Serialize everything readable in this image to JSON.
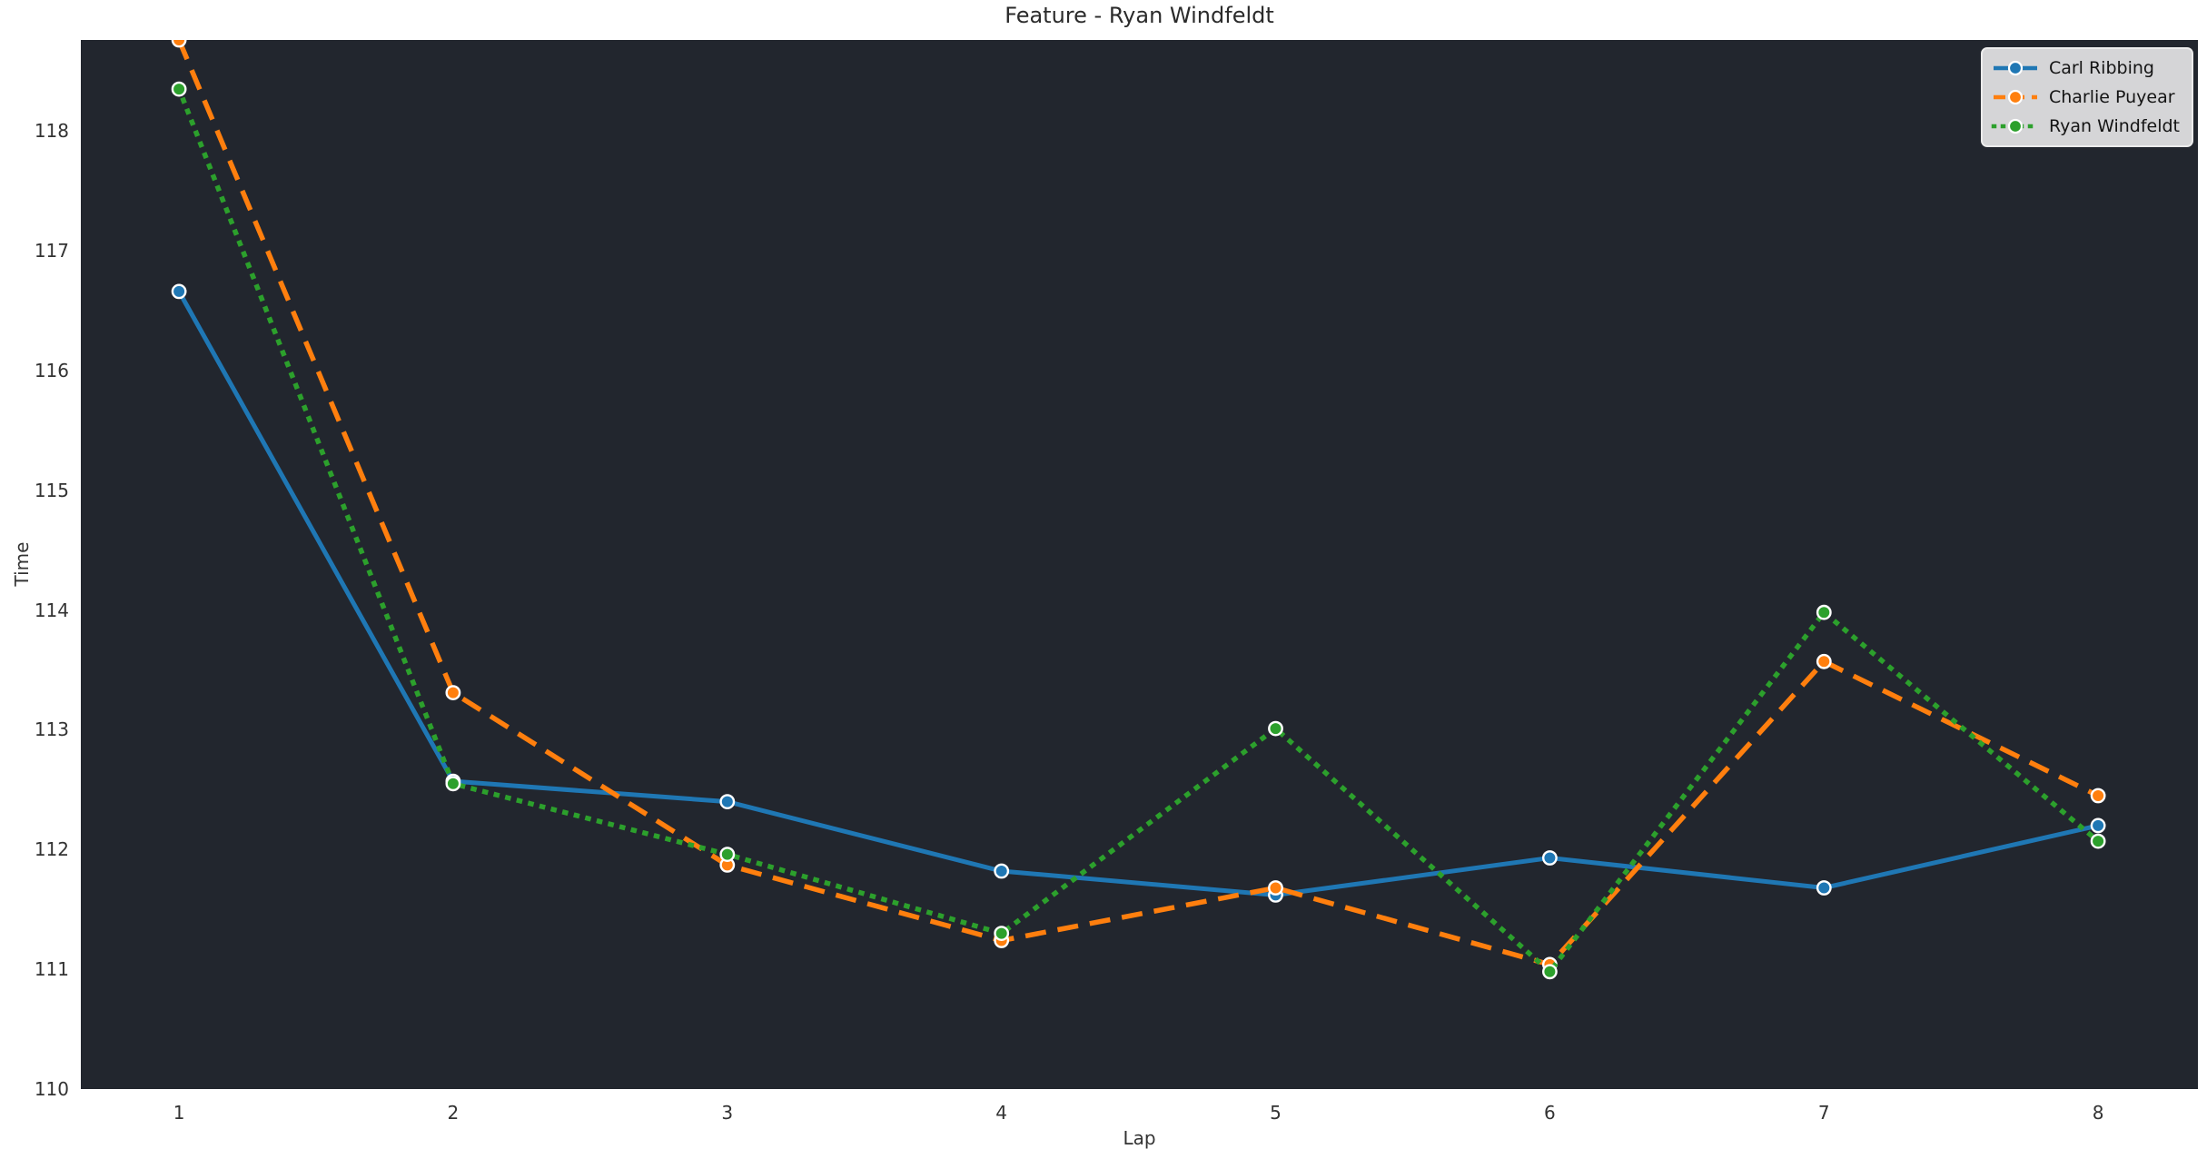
{
  "chart_data": {
    "type": "line",
    "title": "Feature - Ryan Windfeldt",
    "xlabel": "Lap",
    "ylabel": "Time",
    "x": [
      1,
      2,
      3,
      4,
      5,
      6,
      7,
      8
    ],
    "xticks": [
      1,
      2,
      3,
      4,
      5,
      6,
      7,
      8
    ],
    "yticks": [
      110,
      111,
      112,
      113,
      114,
      115,
      116,
      117,
      118
    ],
    "xlim": [
      0.642,
      8.364
    ],
    "ylim": [
      110.0,
      118.76
    ],
    "grid": false,
    "legend_position": "upper right",
    "plot_background": "#22262e",
    "page_background": "#ffffff",
    "text_color": "#333333",
    "marker_edge_color": "#ffffff",
    "series": [
      {
        "name": "Carl Ribbing",
        "color": "#1f77b4",
        "line_style": "solid",
        "marker": "circle",
        "values": [
          116.66,
          112.57,
          112.4,
          111.82,
          111.62,
          111.93,
          111.68,
          112.2
        ]
      },
      {
        "name": "Charlie Puyear",
        "color": "#ff7f0e",
        "line_style": "dashed",
        "marker": "circle",
        "values": [
          118.76,
          113.31,
          111.87,
          111.24,
          111.68,
          111.04,
          113.57,
          112.45
        ]
      },
      {
        "name": "Ryan Windfeldt",
        "color": "#2ca02c",
        "line_style": "dotted",
        "marker": "circle",
        "values": [
          118.35,
          112.55,
          111.96,
          111.3,
          113.01,
          110.98,
          113.98,
          112.07
        ]
      }
    ],
    "legend": {
      "labels": [
        "Carl Ribbing",
        "Charlie Puyear",
        "Ryan Windfeldt"
      ],
      "background": "#d5d5d7"
    }
  }
}
